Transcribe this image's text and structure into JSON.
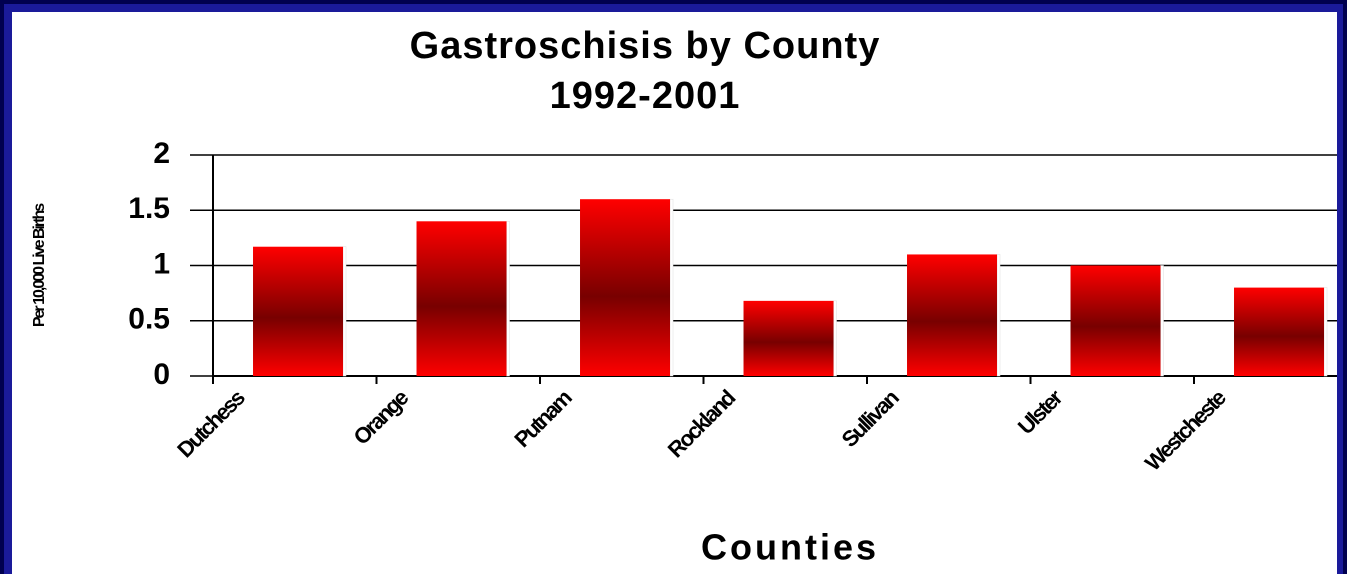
{
  "chart_data": {
    "type": "bar",
    "title": "Gastroschisis by County",
    "subtitle": "1992-2001",
    "x_label": "Counties",
    "y_label": "Per 10,000 Live Births",
    "categories": [
      "Dutchess",
      "Orange",
      "Putnam",
      "Rockland",
      "Sullivan",
      "Ulster",
      "Westcheste"
    ],
    "values": [
      1.17,
      1.4,
      1.6,
      0.68,
      1.1,
      1.0,
      0.8
    ],
    "color": "#ff0000",
    "ylim": [
      0,
      2
    ],
    "yticks": [
      0,
      0.5,
      1,
      1.5,
      2
    ],
    "grid": true
  }
}
